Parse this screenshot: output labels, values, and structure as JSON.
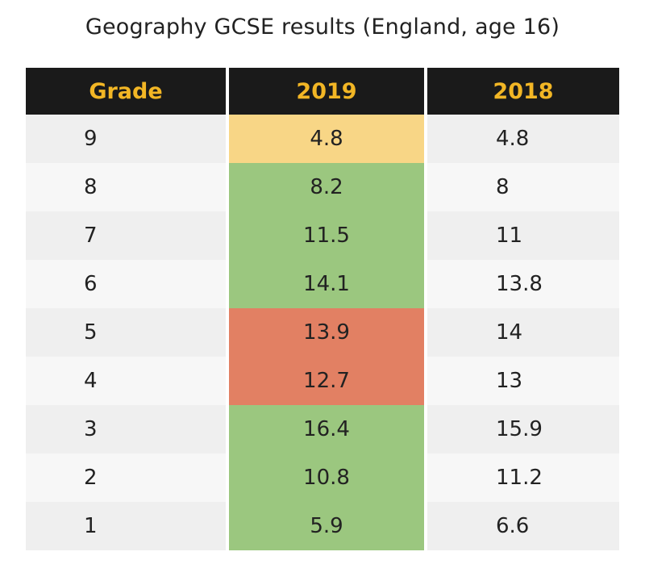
{
  "title": "Geography GCSE results (England, age 16)",
  "colors": {
    "header_bg": "#1a1a1a",
    "header_text": "#f2b625",
    "yellow": "#f8d686",
    "green": "#9bc77f",
    "red": "#e28063",
    "row_odd": "#efefef",
    "row_even": "#f7f7f7"
  },
  "chart_data": {
    "type": "table",
    "columns": [
      "Grade",
      "2019",
      "2018"
    ],
    "rows": [
      {
        "grade": "9",
        "y2019": "4.8",
        "y2018": "4.8",
        "highlight": "yellow"
      },
      {
        "grade": "8",
        "y2019": "8.2",
        "y2018": "8",
        "highlight": "green"
      },
      {
        "grade": "7",
        "y2019": "11.5",
        "y2018": "11",
        "highlight": "green"
      },
      {
        "grade": "6",
        "y2019": "14.1",
        "y2018": "13.8",
        "highlight": "green"
      },
      {
        "grade": "5",
        "y2019": "13.9",
        "y2018": "14",
        "highlight": "red"
      },
      {
        "grade": "4",
        "y2019": "12.7",
        "y2018": "13",
        "highlight": "red"
      },
      {
        "grade": "3",
        "y2019": "16.4",
        "y2018": "15.9",
        "highlight": "green"
      },
      {
        "grade": "2",
        "y2019": "10.8",
        "y2018": "11.2",
        "highlight": "green"
      },
      {
        "grade": "1",
        "y2019": "5.9",
        "y2018": "6.6",
        "highlight": "green"
      }
    ]
  }
}
